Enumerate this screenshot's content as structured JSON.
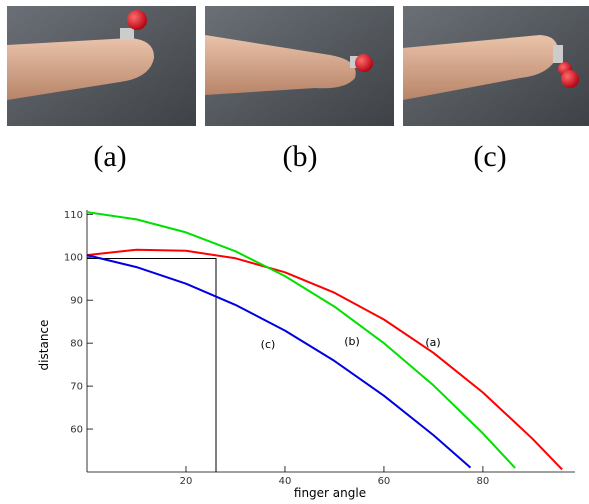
{
  "figure": {
    "panels": [
      {
        "caption": "(a)"
      },
      {
        "caption": "(b)"
      },
      {
        "caption": "(c)"
      }
    ]
  },
  "chart_data": {
    "type": "line",
    "x_label": "finger angle",
    "y_label": "distance",
    "xlim": [
      0,
      98
    ],
    "ylim": [
      50,
      111
    ],
    "xticks": [
      20,
      40,
      60,
      80
    ],
    "yticks": [
      60,
      70,
      80,
      90,
      100,
      110
    ],
    "annotations": [
      "(c)",
      "(b)",
      "(a)"
    ],
    "series": [
      {
        "color": "#ff0000",
        "x": [
          0,
          10,
          20,
          30,
          40,
          50,
          60,
          70,
          80,
          90,
          96
        ],
        "values": [
          100.5,
          101.75,
          101.5,
          99.75,
          96.5,
          91.75,
          85.5,
          77.75,
          68.5,
          57.75,
          50.6
        ]
      },
      {
        "color": "#00e000",
        "x": [
          0,
          10,
          20,
          30,
          40,
          50,
          60,
          70,
          80,
          86.5
        ],
        "values": [
          110.5,
          108.82,
          105.78,
          101.38,
          95.62,
          88.5,
          80.02,
          70.18,
          58.98,
          50.95
        ]
      },
      {
        "color": "#0000e0",
        "x": [
          0,
          10,
          20,
          30,
          40,
          50,
          60,
          70,
          77.5
        ],
        "values": [
          100.5,
          97.7,
          93.84,
          88.91,
          82.92,
          75.87,
          67.76,
          58.59,
          51.02
        ]
      }
    ]
  }
}
